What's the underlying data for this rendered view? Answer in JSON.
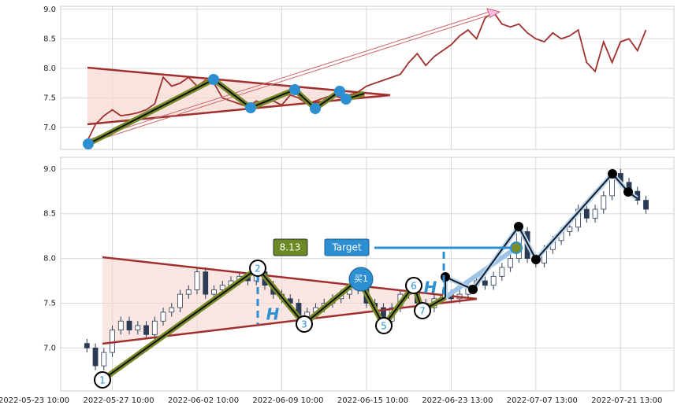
{
  "chart_data": [
    {
      "type": "line",
      "color": "#a0302e",
      "x": [
        7,
        8,
        9,
        10,
        11,
        12,
        13,
        14,
        15,
        16,
        17,
        18,
        19,
        20,
        21,
        22,
        23,
        24,
        25,
        26,
        27,
        28,
        29,
        30,
        31,
        32,
        33,
        34,
        35,
        36,
        37,
        38,
        39,
        40,
        41,
        42,
        43,
        44,
        45,
        46,
        47,
        48,
        49,
        50,
        51,
        52,
        53,
        54,
        55,
        56,
        57,
        58,
        59,
        60,
        61,
        62,
        63,
        64,
        65,
        66,
        67,
        68,
        69,
        70,
        71,
        72,
        73
      ],
      "values": [
        6.76,
        7.05,
        7.2,
        7.3,
        7.2,
        7.22,
        7.25,
        7.3,
        7.4,
        7.85,
        7.7,
        7.75,
        7.85,
        7.7,
        7.8,
        7.75,
        7.5,
        7.45,
        7.4,
        7.35,
        7.45,
        7.4,
        7.45,
        7.38,
        7.55,
        7.5,
        7.4,
        7.45,
        7.5,
        7.55,
        7.5,
        7.55,
        7.6,
        7.7,
        7.75,
        7.8,
        7.85,
        7.9,
        8.1,
        8.25,
        8.05,
        8.2,
        8.3,
        8.4,
        8.55,
        8.65,
        8.5,
        8.85,
        8.95,
        8.75,
        8.7,
        8.75,
        8.6,
        8.5,
        8.45,
        8.6,
        8.5,
        8.55,
        8.65,
        8.1,
        7.95,
        8.45,
        8.1,
        8.45,
        8.5,
        8.3,
        8.65
      ],
      "xlim": [
        3.9,
        76.3
      ],
      "xticks": [
        10,
        20,
        30,
        40,
        50,
        60,
        70
      ],
      "ylim": [
        6.63,
        9.05
      ],
      "yticks": [
        {
          "value": 7,
          "label": "7.0"
        },
        {
          "value": 7.5,
          "label": "7.5"
        },
        {
          "value": 8,
          "label": "8.0"
        },
        {
          "value": 8.5,
          "label": "8.5"
        },
        {
          "value": 9,
          "label": "9.0"
        }
      ],
      "grid": true
    },
    {
      "type": "candlestick",
      "up_color": "#ffffff",
      "down_color": "#2b3a55",
      "edge_color": "#2b3a55",
      "x": [
        7,
        8,
        9,
        10,
        11,
        12,
        13,
        14,
        15,
        16,
        17,
        18,
        19,
        20,
        21,
        22,
        23,
        24,
        25,
        26,
        27,
        28,
        29,
        30,
        31,
        32,
        33,
        34,
        35,
        36,
        37,
        38,
        39,
        40,
        41,
        42,
        43,
        44,
        45,
        46,
        47,
        48,
        49,
        50,
        51,
        52,
        53,
        54,
        55,
        56,
        57,
        58,
        59,
        60,
        61,
        62,
        63,
        64,
        65,
        66,
        67,
        68,
        69,
        70,
        71,
        72,
        73
      ],
      "open": [
        7.05,
        7.0,
        6.8,
        6.95,
        7.2,
        7.3,
        7.2,
        7.25,
        7.15,
        7.3,
        7.4,
        7.45,
        7.6,
        7.65,
        7.85,
        7.6,
        7.65,
        7.7,
        7.75,
        7.8,
        7.75,
        7.85,
        7.7,
        7.6,
        7.55,
        7.5,
        7.35,
        7.4,
        7.45,
        7.5,
        7.55,
        7.6,
        7.65,
        7.7,
        7.5,
        7.45,
        7.3,
        7.45,
        7.6,
        7.65,
        7.5,
        7.45,
        7.55,
        7.6,
        7.55,
        7.6,
        7.7,
        7.75,
        7.7,
        7.8,
        7.9,
        8.0,
        8.3,
        8.0,
        7.95,
        8.1,
        8.2,
        8.3,
        8.35,
        8.55,
        8.45,
        8.55,
        8.7,
        8.95,
        8.85,
        8.75,
        8.65
      ],
      "high": [
        7.1,
        7.05,
        7.0,
        7.25,
        7.35,
        7.35,
        7.3,
        7.3,
        7.35,
        7.45,
        7.5,
        7.65,
        7.7,
        7.9,
        7.9,
        7.7,
        7.75,
        7.8,
        7.85,
        7.85,
        7.9,
        7.9,
        7.75,
        7.65,
        7.6,
        7.55,
        7.45,
        7.5,
        7.55,
        7.6,
        7.65,
        7.7,
        7.75,
        7.75,
        7.55,
        7.5,
        7.5,
        7.65,
        7.7,
        7.7,
        7.55,
        7.6,
        7.65,
        7.65,
        7.65,
        7.75,
        7.8,
        7.8,
        7.85,
        7.95,
        8.05,
        8.35,
        8.35,
        8.05,
        8.15,
        8.25,
        8.35,
        8.4,
        8.6,
        8.6,
        8.6,
        8.75,
        9.0,
        9.0,
        8.9,
        8.8,
        8.7
      ],
      "low": [
        6.95,
        6.75,
        6.75,
        6.9,
        7.15,
        7.15,
        7.15,
        7.1,
        7.1,
        7.25,
        7.35,
        7.4,
        7.55,
        7.6,
        7.55,
        7.55,
        7.6,
        7.65,
        7.7,
        7.7,
        7.7,
        7.65,
        7.55,
        7.5,
        7.45,
        7.3,
        7.3,
        7.35,
        7.4,
        7.45,
        7.5,
        7.55,
        7.6,
        7.45,
        7.4,
        7.25,
        7.25,
        7.4,
        7.55,
        7.45,
        7.4,
        7.4,
        7.5,
        7.5,
        7.5,
        7.55,
        7.65,
        7.65,
        7.65,
        7.75,
        7.85,
        7.95,
        7.95,
        7.9,
        7.9,
        8.05,
        8.15,
        8.25,
        8.3,
        8.4,
        8.4,
        8.5,
        8.65,
        8.8,
        8.7,
        8.6,
        8.5
      ],
      "close": [
        7.0,
        6.8,
        6.95,
        7.2,
        7.3,
        7.2,
        7.25,
        7.15,
        7.3,
        7.4,
        7.45,
        7.6,
        7.65,
        7.85,
        7.6,
        7.65,
        7.7,
        7.75,
        7.8,
        7.75,
        7.85,
        7.7,
        7.6,
        7.55,
        7.5,
        7.35,
        7.4,
        7.45,
        7.5,
        7.55,
        7.6,
        7.65,
        7.7,
        7.5,
        7.45,
        7.3,
        7.45,
        7.6,
        7.65,
        7.5,
        7.45,
        7.55,
        7.6,
        7.55,
        7.6,
        7.7,
        7.75,
        7.7,
        7.8,
        7.9,
        8.0,
        8.3,
        8.0,
        7.95,
        8.1,
        8.2,
        8.3,
        8.35,
        8.55,
        8.45,
        8.55,
        8.7,
        8.95,
        8.85,
        8.75,
        8.65,
        8.55
      ],
      "xlim": [
        3.9,
        76.3
      ],
      "xticks": [
        {
          "value": 0,
          "label": "2022-05-23 10:00"
        },
        {
          "value": 10,
          "label": "2022-05-27 10:00"
        },
        {
          "value": 20,
          "label": "2022-06-02 10:00"
        },
        {
          "value": 30,
          "label": "2022-06-09 10:00"
        },
        {
          "value": 40,
          "label": "2022-06-15 10:00"
        },
        {
          "value": 50,
          "label": "2022-06-23 13:00"
        },
        {
          "value": 60,
          "label": "2022-07-07 13:00"
        },
        {
          "value": 70,
          "label": "2022-07-21 13:00"
        }
      ],
      "ylim": [
        6.52,
        9.13
      ],
      "yticks": [
        {
          "value": 7,
          "label": "7.0"
        },
        {
          "value": 7.5,
          "label": "7.5"
        },
        {
          "value": 8,
          "label": "8.0"
        },
        {
          "value": 8.5,
          "label": "8.5"
        },
        {
          "value": 9,
          "label": "9.0"
        }
      ],
      "grid": true,
      "annotations": {
        "price_box": "8.13",
        "target": "Target",
        "buy": "买1",
        "points": [
          "1",
          "2",
          "3",
          "5",
          "6",
          "7"
        ],
        "h_labels": [
          "H",
          "H"
        ]
      }
    }
  ]
}
